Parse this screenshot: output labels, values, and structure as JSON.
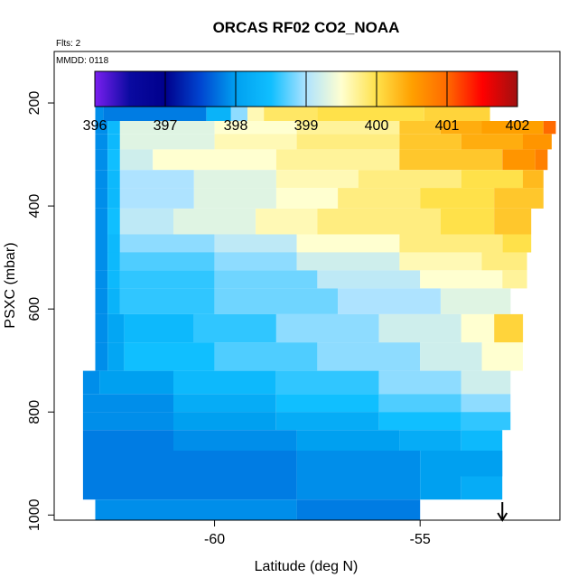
{
  "chart_data": {
    "type": "heatmap",
    "title": "ORCAS RF02 CO2_NOAA",
    "subtitle": "Flts: 2",
    "annotation": "MMDD: 0118",
    "xlabel": "Latitude (deg N)",
    "ylabel": "PSXC (mbar)",
    "xlim": [
      -63.9,
      -51.6
    ],
    "ylim": [
      1010,
      100
    ],
    "y_reversed": true,
    "x_ticks": [
      -60,
      -55
    ],
    "y_ticks": [
      200,
      400,
      600,
      800,
      1000
    ],
    "colorbar": {
      "range": [
        396,
        402
      ],
      "ticks": [
        396,
        397,
        398,
        399,
        400,
        401,
        402
      ],
      "colors": [
        "#7a1ff0",
        "#0a0aa0",
        "#00008c",
        "#0045d0",
        "#00a0f0",
        "#10bfff",
        "#aee3ff",
        "#ffffd0",
        "#ffe14a",
        "#ffa000",
        "#ff6a00",
        "#ff0000",
        "#a01010"
      ]
    },
    "arrow_marker": {
      "x": -53.0,
      "direction": "down"
    },
    "rows": [
      {
        "p": [
          178,
          198
        ],
        "segments": [
          [
            -62.9,
            -62.6,
            397.9
          ],
          [
            -62.6,
            -62.4,
            396.3
          ],
          [
            -62.0,
            -61.8,
            397.0
          ],
          [
            -61.8,
            -61.0,
            396.9
          ],
          [
            -61.0,
            -60.0,
            397.4
          ],
          [
            -60.0,
            -57.4,
            396.9
          ],
          [
            -57.4,
            -56.8,
            397.8
          ],
          [
            -56.8,
            -56.5,
            399.2
          ],
          [
            -56.5,
            -56.0,
            398.5
          ],
          [
            -56.0,
            -55.4,
            400.0
          ],
          [
            -55.4,
            -54.9,
            399.5
          ]
        ]
      },
      {
        "p": [
          198,
          235
        ],
        "segments": [
          [
            -62.9,
            -62.7,
            397.9
          ],
          [
            -62.7,
            -60.2,
            397.8
          ],
          [
            -60.2,
            -59.6,
            398.3
          ],
          [
            -59.6,
            -59.2,
            398.9
          ],
          [
            -59.2,
            -58.8,
            399.6
          ],
          [
            -58.8,
            -57.5,
            399.9
          ],
          [
            -57.5,
            -54.9,
            400.0
          ],
          [
            -54.9,
            -53.3,
            400.1
          ]
        ]
      },
      {
        "p": [
          235,
          260
        ],
        "segments": [
          [
            -62.9,
            -62.6,
            397.9
          ],
          [
            -62.6,
            -62.3,
            398.4
          ],
          [
            -62.3,
            -60.0,
            399.3
          ],
          [
            -60.0,
            -58.0,
            399.5
          ],
          [
            -58.0,
            -55.5,
            399.7
          ],
          [
            -55.5,
            -54.5,
            400.2
          ],
          [
            -54.5,
            -53.5,
            400.4
          ],
          [
            -53.5,
            -52.0,
            400.5
          ],
          [
            -52.0,
            -51.7,
            401.0
          ]
        ]
      },
      {
        "p": [
          260,
          290
        ],
        "segments": [
          [
            -62.9,
            -62.6,
            397.9
          ],
          [
            -62.6,
            -62.3,
            398.4
          ],
          [
            -62.3,
            -60.0,
            399.3
          ],
          [
            -60.0,
            -58.0,
            399.6
          ],
          [
            -58.0,
            -55.5,
            399.8
          ],
          [
            -55.5,
            -54.0,
            400.2
          ],
          [
            -54.0,
            -52.5,
            400.4
          ],
          [
            -52.5,
            -51.8,
            400.6
          ]
        ]
      },
      {
        "p": [
          290,
          330
        ],
        "segments": [
          [
            -62.9,
            -62.6,
            397.9
          ],
          [
            -62.6,
            -62.3,
            398.5
          ],
          [
            -62.3,
            -61.5,
            399.2
          ],
          [
            -61.5,
            -58.5,
            399.5
          ],
          [
            -58.5,
            -55.5,
            399.7
          ],
          [
            -55.5,
            -53.0,
            400.2
          ],
          [
            -53.0,
            -52.2,
            400.6
          ],
          [
            -52.2,
            -51.9,
            400.8
          ]
        ]
      },
      {
        "p": [
          330,
          365
        ],
        "segments": [
          [
            -62.9,
            -62.6,
            397.9
          ],
          [
            -62.6,
            -62.3,
            398.4
          ],
          [
            -62.3,
            -60.5,
            399.0
          ],
          [
            -60.5,
            -58.5,
            399.3
          ],
          [
            -58.5,
            -56.5,
            399.6
          ],
          [
            -56.5,
            -54.0,
            399.8
          ],
          [
            -54.0,
            -52.5,
            400.0
          ],
          [
            -52.5,
            -52.0,
            400.3
          ]
        ]
      },
      {
        "p": [
          365,
          405
        ],
        "segments": [
          [
            -62.9,
            -62.6,
            397.9
          ],
          [
            -62.6,
            -62.3,
            398.4
          ],
          [
            -62.3,
            -60.5,
            399.0
          ],
          [
            -60.5,
            -58.5,
            399.3
          ],
          [
            -58.5,
            -57.0,
            399.5
          ],
          [
            -57.0,
            -55.0,
            399.8
          ],
          [
            -55.0,
            -53.2,
            400.0
          ],
          [
            -53.2,
            -52.0,
            400.2
          ]
        ]
      },
      {
        "p": [
          405,
          455
        ],
        "segments": [
          [
            -62.9,
            -62.6,
            397.9
          ],
          [
            -62.6,
            -62.3,
            398.5
          ],
          [
            -62.3,
            -61.0,
            399.1
          ],
          [
            -61.0,
            -59.0,
            399.3
          ],
          [
            -59.0,
            -57.5,
            399.6
          ],
          [
            -57.5,
            -54.5,
            399.8
          ],
          [
            -54.5,
            -53.2,
            400.0
          ],
          [
            -53.2,
            -52.3,
            400.2
          ]
        ]
      },
      {
        "p": [
          455,
          490
        ],
        "segments": [
          [
            -62.9,
            -62.6,
            397.9
          ],
          [
            -62.6,
            -62.3,
            398.4
          ],
          [
            -62.3,
            -60.0,
            398.9
          ],
          [
            -60.0,
            -58.0,
            399.1
          ],
          [
            -58.0,
            -55.5,
            399.5
          ],
          [
            -55.5,
            -53.0,
            399.8
          ],
          [
            -53.0,
            -52.3,
            400.0
          ]
        ]
      },
      {
        "p": [
          490,
          525
        ],
        "segments": [
          [
            -62.9,
            -62.6,
            397.9
          ],
          [
            -62.6,
            -62.3,
            398.4
          ],
          [
            -62.3,
            -60.0,
            398.7
          ],
          [
            -60.0,
            -58.0,
            398.9
          ],
          [
            -58.0,
            -55.5,
            399.2
          ],
          [
            -55.5,
            -53.5,
            399.6
          ],
          [
            -53.5,
            -52.4,
            399.8
          ]
        ]
      },
      {
        "p": [
          525,
          560
        ],
        "segments": [
          [
            -62.9,
            -62.6,
            397.9
          ],
          [
            -62.6,
            -62.3,
            398.4
          ],
          [
            -62.3,
            -60.0,
            398.6
          ],
          [
            -60.0,
            -57.5,
            398.8
          ],
          [
            -57.5,
            -55.0,
            399.1
          ],
          [
            -55.0,
            -53.0,
            399.5
          ],
          [
            -53.0,
            -52.4,
            399.7
          ]
        ]
      },
      {
        "p": [
          560,
          610
        ],
        "segments": [
          [
            -62.9,
            -62.6,
            397.9
          ],
          [
            -62.6,
            -62.3,
            398.3
          ],
          [
            -62.3,
            -60.0,
            398.6
          ],
          [
            -60.0,
            -57.0,
            398.8
          ],
          [
            -57.0,
            -54.5,
            399.0
          ],
          [
            -54.5,
            -52.8,
            399.3
          ]
        ]
      },
      {
        "p": [
          610,
          665
        ],
        "segments": [
          [
            -62.9,
            -62.6,
            397.9
          ],
          [
            -62.6,
            -62.2,
            398.1
          ],
          [
            -62.2,
            -60.5,
            398.4
          ],
          [
            -60.5,
            -58.5,
            398.6
          ],
          [
            -58.5,
            -56.0,
            398.9
          ],
          [
            -56.0,
            -54.0,
            399.2
          ],
          [
            -54.0,
            -53.2,
            399.5
          ],
          [
            -53.2,
            -52.5,
            400.1
          ]
        ]
      },
      {
        "p": [
          665,
          720
        ],
        "segments": [
          [
            -62.9,
            -62.6,
            397.9
          ],
          [
            -62.6,
            -62.2,
            398.1
          ],
          [
            -62.2,
            -60.0,
            398.5
          ],
          [
            -60.0,
            -57.5,
            398.7
          ],
          [
            -57.5,
            -55.0,
            398.9
          ],
          [
            -55.0,
            -53.5,
            399.2
          ],
          [
            -53.5,
            -52.5,
            399.5
          ]
        ]
      },
      {
        "p": [
          720,
          765
        ],
        "segments": [
          [
            -63.2,
            -62.8,
            397.9
          ],
          [
            -62.8,
            -61.0,
            398.0
          ],
          [
            -61.0,
            -58.5,
            398.4
          ],
          [
            -58.5,
            -56.0,
            398.6
          ],
          [
            -56.0,
            -54.0,
            398.9
          ],
          [
            -54.0,
            -52.8,
            399.2
          ]
        ]
      },
      {
        "p": [
          765,
          800
        ],
        "segments": [
          [
            -63.2,
            -61.0,
            397.9
          ],
          [
            -61.0,
            -58.5,
            398.2
          ],
          [
            -58.5,
            -56.0,
            398.5
          ],
          [
            -56.0,
            -54.0,
            398.7
          ],
          [
            -54.0,
            -52.8,
            398.9
          ]
        ]
      },
      {
        "p": [
          800,
          835
        ],
        "segments": [
          [
            -63.2,
            -61.0,
            397.9
          ],
          [
            -61.0,
            -58.5,
            398.0
          ],
          [
            -58.5,
            -56.0,
            398.2
          ],
          [
            -56.0,
            -54.0,
            398.5
          ],
          [
            -54.0,
            -52.8,
            398.6
          ]
        ]
      },
      {
        "p": [
          835,
          875
        ],
        "segments": [
          [
            -63.2,
            -61.0,
            397.8
          ],
          [
            -61.0,
            -58.0,
            397.9
          ],
          [
            -58.0,
            -55.5,
            398.0
          ],
          [
            -55.5,
            -54.0,
            398.2
          ],
          [
            -54.0,
            -53.0,
            398.4
          ]
        ]
      },
      {
        "p": [
          875,
          925
        ],
        "segments": [
          [
            -63.2,
            -61.0,
            397.8
          ],
          [
            -61.0,
            -58.0,
            397.8
          ],
          [
            -58.0,
            -55.0,
            397.9
          ],
          [
            -55.0,
            -53.0,
            398.0
          ]
        ]
      },
      {
        "p": [
          925,
          970
        ],
        "segments": [
          [
            -63.2,
            -61.0,
            397.8
          ],
          [
            -61.0,
            -58.0,
            397.8
          ],
          [
            -58.0,
            -55.0,
            397.9
          ],
          [
            -55.0,
            -54.0,
            398.0
          ],
          [
            -54.0,
            -53.0,
            398.2
          ]
        ]
      },
      {
        "p": [
          970,
          1010
        ],
        "segments": [
          [
            -62.9,
            -61.0,
            397.9
          ],
          [
            -61.0,
            -58.0,
            397.9
          ],
          [
            -58.0,
            -55.0,
            397.8
          ]
        ]
      }
    ]
  }
}
